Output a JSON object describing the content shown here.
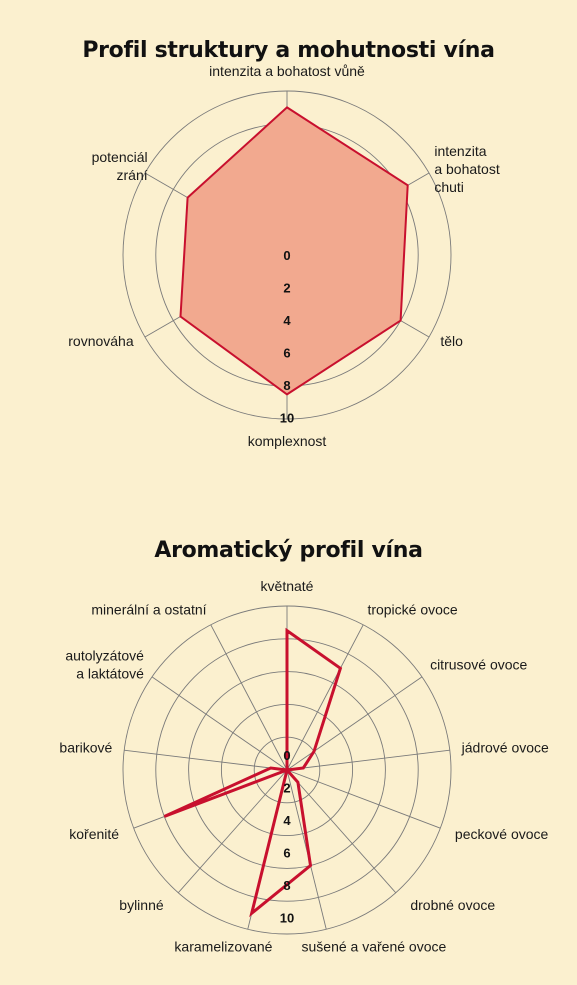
{
  "chart_data": [
    {
      "type": "radar",
      "title": "Profil struktury a mohutnosti vína",
      "axes": [
        [
          "intenzita a bohatost vůně"
        ],
        [
          "intenzita",
          "a bohatost",
          "chuti"
        ],
        [
          "tělo"
        ],
        [
          "komplexnost"
        ],
        [
          "rovnováha"
        ],
        [
          "potenciál",
          "zrání"
        ]
      ],
      "series": [
        {
          "values": [
            9,
            8.5,
            8,
            8.5,
            7.5,
            7
          ]
        }
      ],
      "rlim": [
        0,
        10
      ],
      "ticks": [
        0,
        2,
        4,
        6,
        8,
        10
      ],
      "colors": {
        "fill": "#f2a98f",
        "stroke": "#c8102e",
        "grid": "#7a7a7a"
      }
    },
    {
      "type": "radar",
      "title": "Aromatický profil vína",
      "axes": [
        [
          "květnaté"
        ],
        [
          "tropické ovoce"
        ],
        [
          "citrusové ovoce"
        ],
        [
          "jádrové ovoce"
        ],
        [
          "peckové ovoce"
        ],
        [
          "drobné ovoce"
        ],
        [
          "sušené a vařené ovoce"
        ],
        [
          "karamelizované"
        ],
        [
          "bylinné"
        ],
        [
          "kořenité"
        ],
        [
          "barikové"
        ],
        [
          "autolyzátové",
          "a laktátové"
        ],
        [
          "minerální a ostatní"
        ]
      ],
      "series": [
        {
          "values": [
            8.5,
            7,
            2,
            1,
            0,
            1,
            6,
            9,
            0,
            8,
            1,
            0,
            0
          ]
        }
      ],
      "rlim": [
        0,
        10
      ],
      "ticks": [
        0,
        2,
        4,
        6,
        8,
        10
      ],
      "colors": {
        "stroke": "#c8102e",
        "grid": "#7a7a7a"
      }
    }
  ]
}
